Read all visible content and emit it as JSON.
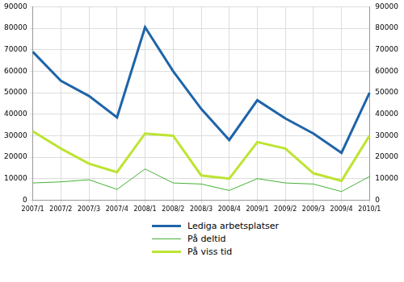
{
  "chart_data": {
    "type": "line",
    "categories": [
      "2007/1",
      "2007/2",
      "2007/3",
      "2007/4",
      "2008/1",
      "2008/2",
      "2008/3",
      "2008/4",
      "2009/1",
      "2009/2",
      "2009/3",
      "2009/4",
      "2010/1"
    ],
    "series": [
      {
        "name": "Lediga arbetsplatser",
        "color": "#1f64a8",
        "values": [
          69000,
          55500,
          48500,
          38500,
          80500,
          60000,
          42500,
          28000,
          46500,
          38000,
          31000,
          22000,
          50000
        ]
      },
      {
        "name": "På deltid",
        "color": "#45b035",
        "values": [
          8000,
          8500,
          9500,
          5000,
          14500,
          8000,
          7500,
          4500,
          10000,
          8000,
          7500,
          4000,
          11000
        ]
      },
      {
        "name": "På viss tid",
        "color": "#bde432",
        "values": [
          32000,
          24000,
          17000,
          13000,
          31000,
          30000,
          11500,
          10000,
          27000,
          24000,
          12500,
          9000,
          30000
        ]
      }
    ],
    "ylim": [
      0,
      90000
    ],
    "yticks": [
      0,
      10000,
      20000,
      30000,
      40000,
      50000,
      60000,
      70000,
      80000,
      90000
    ],
    "y2lim": [
      0,
      90000
    ],
    "y2ticks": [
      0,
      10000,
      20000,
      30000,
      40000,
      50000,
      60000,
      70000,
      80000,
      90000
    ],
    "grid": true,
    "legend": "bottom"
  }
}
